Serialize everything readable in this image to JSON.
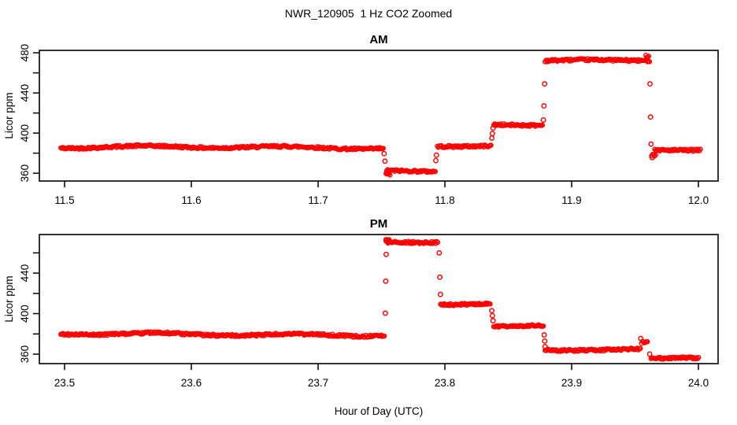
{
  "figure": {
    "title": "NWR_120905  1 Hz CO2 Zoomed",
    "xlabel": "Hour of Day (UTC)",
    "background": "#ffffff",
    "axis_color": "#000000",
    "point_color": "#ff0000"
  },
  "chart_data": [
    {
      "id": "am",
      "type": "scatter",
      "title": "AM",
      "ylabel": "Licor ppm",
      "marker": "open-circle",
      "grid": "off",
      "xlim": [
        11.4801,
        12.0155
      ],
      "ylim": [
        352.2,
        482.4
      ],
      "xticks": [
        {
          "v": 11.5,
          "label": "11.5"
        },
        {
          "v": 11.6,
          "label": "11.6"
        },
        {
          "v": 11.7,
          "label": "11.7"
        },
        {
          "v": 11.8,
          "label": "11.8"
        },
        {
          "v": 11.9,
          "label": "11.9"
        },
        {
          "v": 12.0,
          "label": "12.0"
        }
      ],
      "yticks": [
        {
          "v": 360,
          "label": "360"
        },
        {
          "v": 380,
          "label": ""
        },
        {
          "v": 400,
          "label": "400"
        },
        {
          "v": 420,
          "label": ""
        },
        {
          "v": 440,
          "label": "440"
        },
        {
          "v": 460,
          "label": ""
        },
        {
          "v": 480,
          "label": "480"
        }
      ],
      "segments": [
        {
          "x_start": 11.497,
          "x_end": 11.7515,
          "ppm": 385.5
        },
        {
          "x_start": 11.7535,
          "x_end": 11.757,
          "ppm": 359.5
        },
        {
          "x_start": 11.754,
          "x_end": 11.7925,
          "ppm": 362.5
        },
        {
          "x_start": 11.794,
          "x_end": 11.8365,
          "ppm": 387.5
        },
        {
          "x_start": 11.8385,
          "x_end": 11.8775,
          "ppm": 408.5
        },
        {
          "x_start": 11.879,
          "x_end": 11.9615,
          "ppm": 472.5
        },
        {
          "x_start": 11.9585,
          "x_end": 11.9615,
          "ppm": 476.0
        },
        {
          "x_start": 11.963,
          "x_end": 11.9665,
          "ppm": 378.5
        },
        {
          "x_start": 11.9655,
          "x_end": 12.0015,
          "ppm": 383.0
        }
      ],
      "transition_points": [
        {
          "x": 11.752,
          "ppm": 379.5
        },
        {
          "x": 11.7527,
          "ppm": 372.0
        },
        {
          "x": 11.7928,
          "ppm": 372.5
        },
        {
          "x": 11.7933,
          "ppm": 378.0
        },
        {
          "x": 11.837,
          "ppm": 395.0
        },
        {
          "x": 11.8375,
          "ppm": 399.5
        },
        {
          "x": 11.838,
          "ppm": 405.0
        },
        {
          "x": 11.8777,
          "ppm": 413.0
        },
        {
          "x": 11.8781,
          "ppm": 427.0
        },
        {
          "x": 11.8786,
          "ppm": 449.0
        },
        {
          "x": 11.9618,
          "ppm": 449.0
        },
        {
          "x": 11.9622,
          "ppm": 416.0
        },
        {
          "x": 11.9626,
          "ppm": 389.0
        },
        {
          "x": 11.9635,
          "ppm": 375.5
        }
      ]
    },
    {
      "id": "pm",
      "type": "scatter",
      "title": "PM",
      "ylabel": "Licor ppm",
      "marker": "open-circle",
      "grid": "off",
      "xlim": [
        23.4801,
        24.0155
      ],
      "ylim": [
        350.7,
        478.1
      ],
      "xticks": [
        {
          "v": 23.5,
          "label": "23.5"
        },
        {
          "v": 23.6,
          "label": "23.6"
        },
        {
          "v": 23.7,
          "label": "23.7"
        },
        {
          "v": 23.8,
          "label": "23.8"
        },
        {
          "v": 23.9,
          "label": "23.9"
        },
        {
          "v": 24.0,
          "label": "24.0"
        }
      ],
      "yticks": [
        {
          "v": 360,
          "label": "360"
        },
        {
          "v": 380,
          "label": ""
        },
        {
          "v": 400,
          "label": "400"
        },
        {
          "v": 420,
          "label": ""
        },
        {
          "v": 440,
          "label": "440"
        },
        {
          "v": 460,
          "label": ""
        }
      ],
      "segments": [
        {
          "x_start": 23.497,
          "x_end": 23.7525,
          "ppm": 379.5
        },
        {
          "x_start": 23.7535,
          "x_end": 23.756,
          "ppm": 473.5
        },
        {
          "x_start": 23.7535,
          "x_end": 23.795,
          "ppm": 471.0
        },
        {
          "x_start": 23.7965,
          "x_end": 23.8365,
          "ppm": 409.0
        },
        {
          "x_start": 23.8385,
          "x_end": 23.878,
          "ppm": 387.5
        },
        {
          "x_start": 23.879,
          "x_end": 23.955,
          "ppm": 364.0
        },
        {
          "x_start": 23.955,
          "x_end": 23.9605,
          "ppm": 371.0
        },
        {
          "x_start": 23.9625,
          "x_end": 24.0005,
          "ppm": 355.5
        }
      ],
      "transition_points": [
        {
          "x": 23.753,
          "ppm": 400.5
        },
        {
          "x": 23.7533,
          "ppm": 432.0
        },
        {
          "x": 23.7537,
          "ppm": 458.5
        },
        {
          "x": 23.7955,
          "ppm": 460.0
        },
        {
          "x": 23.796,
          "ppm": 436.0
        },
        {
          "x": 23.7965,
          "ppm": 419.0
        },
        {
          "x": 23.837,
          "ppm": 403.0
        },
        {
          "x": 23.8375,
          "ppm": 398.0
        },
        {
          "x": 23.838,
          "ppm": 393.0
        },
        {
          "x": 23.8783,
          "ppm": 379.0
        },
        {
          "x": 23.8787,
          "ppm": 373.0
        },
        {
          "x": 23.879,
          "ppm": 367.5
        },
        {
          "x": 23.9545,
          "ppm": 375.5
        },
        {
          "x": 23.9615,
          "ppm": 360.0
        }
      ]
    }
  ]
}
